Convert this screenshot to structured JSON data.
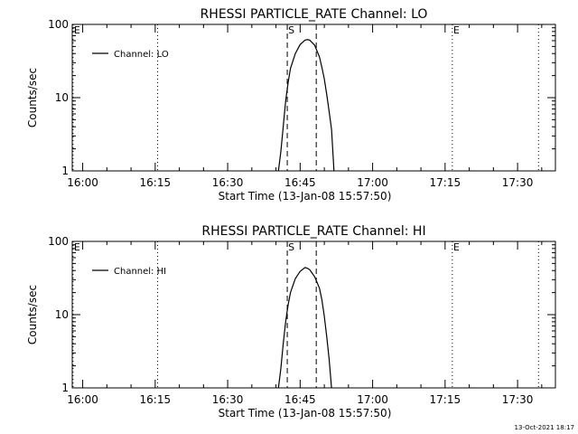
{
  "footer": {
    "timestamp": "13-Oct-2021 18:17"
  },
  "chart_data": [
    {
      "type": "line",
      "title": "RHESSI PARTICLE_RATE Channel: LO",
      "xlabel": "Start Time (13-Jan-08 15:57:50)",
      "ylabel": "Counts/sec",
      "yscale": "log",
      "ylim": [
        1,
        100
      ],
      "xlim": [
        "15:57:50",
        "17:37:50"
      ],
      "x_ticks": [
        "16:00",
        "16:15",
        "16:30",
        "16:45",
        "17:00",
        "17:15",
        "17:30"
      ],
      "y_ticks": [
        "1",
        "10",
        "100"
      ],
      "legend": {
        "position": "top-left",
        "entries": [
          "Channel: LO"
        ]
      },
      "series": [
        {
          "name": "Channel: LO",
          "color": "#000000",
          "x": [
            "16:40:30",
            "16:41:00",
            "16:41:30",
            "16:42:00",
            "16:42:30",
            "16:43:00",
            "16:44:00",
            "16:45:00",
            "16:46:00",
            "16:46:30",
            "16:47:00",
            "16:48:00",
            "16:49:00",
            "16:49:30",
            "16:50:00",
            "16:50:30",
            "16:51:00",
            "16:51:30",
            "16:52:00"
          ],
          "y": [
            1,
            1.8,
            4,
            9,
            16,
            25,
            40,
            53,
            61,
            62,
            61,
            52,
            36,
            26,
            18,
            11,
            6.5,
            3.7,
            1
          ]
        }
      ],
      "annotations": [
        {
          "label": "E",
          "style": "dotted",
          "x": "15:58:00"
        },
        {
          "label": "",
          "style": "dotted",
          "x": "16:15:30"
        },
        {
          "label": "S",
          "style": "dashed",
          "x": "16:42:20"
        },
        {
          "label": "",
          "style": "dashed",
          "x": "16:48:20"
        },
        {
          "label": "E",
          "style": "dotted",
          "x": "17:16:30"
        },
        {
          "label": "",
          "style": "dotted",
          "x": "17:34:20"
        }
      ]
    },
    {
      "type": "line",
      "title": "RHESSI PARTICLE_RATE Channel: HI",
      "xlabel": "Start Time (13-Jan-08 15:57:50)",
      "ylabel": "Counts/sec",
      "yscale": "log",
      "ylim": [
        1,
        100
      ],
      "xlim": [
        "15:57:50",
        "17:37:50"
      ],
      "x_ticks": [
        "16:00",
        "16:15",
        "16:30",
        "16:45",
        "17:00",
        "17:15",
        "17:30"
      ],
      "y_ticks": [
        "1",
        "10",
        "100"
      ],
      "legend": {
        "position": "top-left",
        "entries": [
          "Channel: HI"
        ]
      },
      "series": [
        {
          "name": "Channel: HI",
          "color": "#000000",
          "x": [
            "16:40:30",
            "16:41:00",
            "16:41:30",
            "16:42:00",
            "16:42:30",
            "16:43:00",
            "16:44:00",
            "16:45:00",
            "16:46:00",
            "16:46:30",
            "16:47:00",
            "16:48:00",
            "16:49:00",
            "16:49:30",
            "16:50:00",
            "16:50:30",
            "16:51:00",
            "16:51:30"
          ],
          "y": [
            1,
            1.8,
            4,
            8,
            13.5,
            20,
            31,
            39,
            44,
            43,
            41,
            33,
            23,
            16,
            9.5,
            5,
            2.5,
            1
          ]
        }
      ],
      "annotations": [
        {
          "label": "E",
          "style": "dotted",
          "x": "15:58:00"
        },
        {
          "label": "",
          "style": "dotted",
          "x": "16:15:30"
        },
        {
          "label": "S",
          "style": "dashed",
          "x": "16:42:20"
        },
        {
          "label": "",
          "style": "dashed",
          "x": "16:48:20"
        },
        {
          "label": "E",
          "style": "dotted",
          "x": "17:16:30"
        },
        {
          "label": "",
          "style": "dotted",
          "x": "17:34:20"
        }
      ]
    }
  ]
}
